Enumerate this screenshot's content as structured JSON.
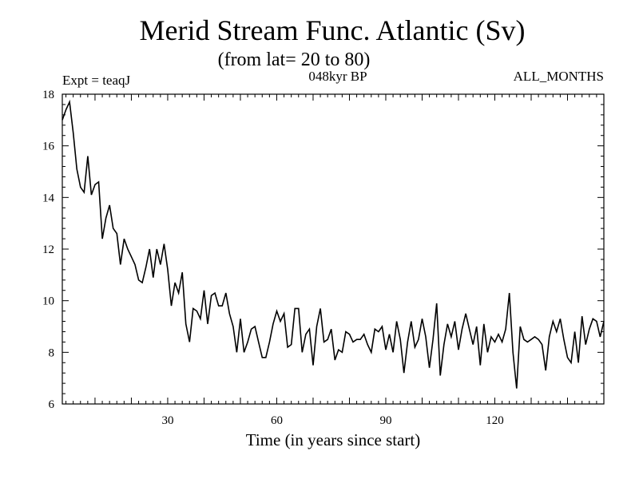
{
  "chart_data": {
    "type": "line",
    "title": "Merid Stream Func. Atlantic (Sv)",
    "subtitle": "(from lat= 20 to 80)",
    "annotation_left": "Expt = teaqJ",
    "annotation_center": "048kyr BP",
    "annotation_right": "ALL_MONTHS",
    "xlabel": "Time (in years since start)",
    "ylabel": "",
    "xlim": [
      1,
      150
    ],
    "ylim": [
      6,
      18
    ],
    "xticks": [
      30,
      60,
      90,
      120
    ],
    "yticks": [
      6,
      8,
      10,
      12,
      14,
      16,
      18
    ],
    "series": [
      {
        "name": "Merid Stream Func. Atlantic",
        "x": [
          1,
          2,
          3,
          4,
          5,
          6,
          7,
          8,
          9,
          10,
          11,
          12,
          13,
          14,
          15,
          16,
          17,
          18,
          19,
          20,
          21,
          22,
          23,
          24,
          25,
          26,
          27,
          28,
          29,
          30,
          31,
          32,
          33,
          34,
          35,
          36,
          37,
          38,
          39,
          40,
          41,
          42,
          43,
          44,
          45,
          46,
          47,
          48,
          49,
          50,
          51,
          52,
          53,
          54,
          55,
          56,
          57,
          58,
          59,
          60,
          61,
          62,
          63,
          64,
          65,
          66,
          67,
          68,
          69,
          70,
          71,
          72,
          73,
          74,
          75,
          76,
          77,
          78,
          79,
          80,
          81,
          82,
          83,
          84,
          85,
          86,
          87,
          88,
          89,
          90,
          91,
          92,
          93,
          94,
          95,
          96,
          97,
          98,
          99,
          100,
          101,
          102,
          103,
          104,
          105,
          106,
          107,
          108,
          109,
          110,
          111,
          112,
          113,
          114,
          115,
          116,
          117,
          118,
          119,
          120,
          121,
          122,
          123,
          124,
          125,
          126,
          127,
          128,
          129,
          130,
          131,
          132,
          133,
          134,
          135,
          136,
          137,
          138,
          139,
          140,
          141,
          142,
          143,
          144,
          145,
          146,
          147,
          148,
          149,
          150
        ],
        "values": [
          17.0,
          17.4,
          17.7,
          16.5,
          15.1,
          14.4,
          14.2,
          15.6,
          14.1,
          14.5,
          14.6,
          12.4,
          13.2,
          13.7,
          12.8,
          12.6,
          11.4,
          12.4,
          12.0,
          11.7,
          11.4,
          10.8,
          10.7,
          11.3,
          12.0,
          10.9,
          12.0,
          11.4,
          12.2,
          11.2,
          9.8,
          10.7,
          10.3,
          11.1,
          9.1,
          8.4,
          9.7,
          9.6,
          9.3,
          10.4,
          9.1,
          10.2,
          10.3,
          9.8,
          9.8,
          10.3,
          9.5,
          9.0,
          8.0,
          9.3,
          8.0,
          8.4,
          8.9,
          9.0,
          8.4,
          7.8,
          7.8,
          8.4,
          9.1,
          9.6,
          9.2,
          9.5,
          8.2,
          8.3,
          9.7,
          9.7,
          8.0,
          8.7,
          8.9,
          7.5,
          9.0,
          9.7,
          8.4,
          8.5,
          8.9,
          7.7,
          8.1,
          8.0,
          8.8,
          8.7,
          8.4,
          8.5,
          8.5,
          8.7,
          8.3,
          8.0,
          8.9,
          8.8,
          9.0,
          8.1,
          8.7,
          8.0,
          9.2,
          8.5,
          7.2,
          8.4,
          9.2,
          8.2,
          8.5,
          9.3,
          8.6,
          7.4,
          8.5,
          9.9,
          7.1,
          8.3,
          9.1,
          8.6,
          9.2,
          8.1,
          8.9,
          9.5,
          8.9,
          8.3,
          9.0,
          7.5,
          9.1,
          8.0,
          8.6,
          8.4,
          8.7,
          8.4,
          8.9,
          10.3,
          8.0,
          6.6,
          9.0,
          8.5,
          8.4,
          8.5,
          8.6,
          8.5,
          8.3,
          7.3,
          8.6,
          9.2,
          8.8,
          9.3,
          8.5,
          7.8,
          7.6,
          8.8,
          7.6,
          9.4,
          8.3,
          8.9,
          9.3,
          9.2,
          8.6,
          9.2
        ]
      }
    ]
  }
}
